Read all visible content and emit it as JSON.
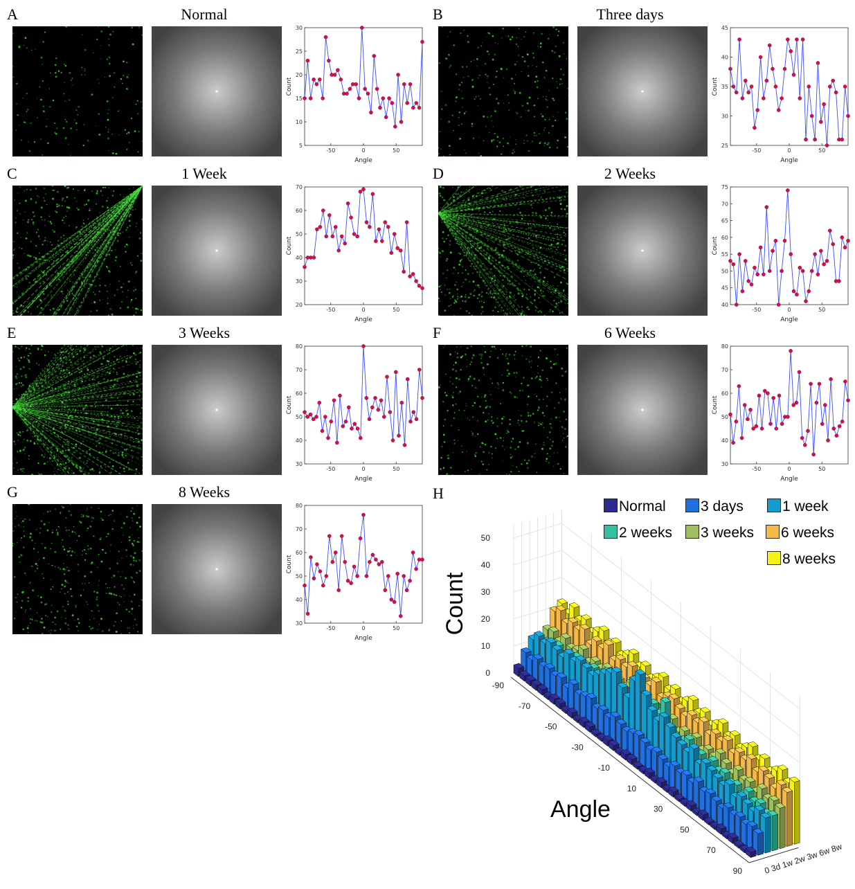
{
  "panels": [
    {
      "letter": "A",
      "title": "Normal",
      "ylim": [
        5,
        30
      ],
      "yticks": [
        5,
        10,
        15,
        20,
        25,
        30
      ],
      "values": [
        15,
        23,
        15,
        19,
        18,
        19,
        15,
        28,
        23,
        20,
        20,
        21,
        19,
        16,
        16,
        17,
        18,
        18,
        15,
        30,
        17,
        16,
        12,
        24,
        17,
        13,
        15,
        11,
        15,
        14,
        9,
        20,
        10,
        18,
        14,
        18,
        13,
        14,
        13,
        27
      ]
    },
    {
      "letter": "B",
      "title": "Three days",
      "ylim": [
        25,
        45
      ],
      "yticks": [
        25,
        30,
        35,
        40,
        45
      ],
      "values": [
        38,
        35,
        34,
        43,
        33,
        36,
        34,
        35,
        28,
        31,
        40,
        33,
        36,
        42,
        38,
        35,
        31,
        33,
        38,
        43,
        41,
        37,
        43,
        33,
        43,
        26,
        35,
        30,
        26,
        39,
        29,
        32,
        25,
        35,
        36,
        34,
        26,
        26,
        35,
        30
      ]
    },
    {
      "letter": "C",
      "title": "1 Week",
      "ylim": [
        20,
        70
      ],
      "yticks": [
        20,
        30,
        40,
        50,
        60,
        70
      ],
      "values": [
        36,
        40,
        40,
        40,
        52,
        53,
        60,
        49,
        58,
        49,
        53,
        43,
        49,
        46,
        63,
        57,
        50,
        49,
        68,
        69,
        55,
        53,
        67,
        47,
        52,
        47,
        55,
        53,
        42,
        50,
        44,
        43,
        34,
        55,
        32,
        33,
        30,
        28,
        27
      ]
    },
    {
      "letter": "D",
      "title": "2 Weeks",
      "ylim": [
        40,
        75
      ],
      "yticks": [
        40,
        45,
        50,
        55,
        60,
        65,
        70,
        75
      ],
      "values": [
        53,
        52,
        40,
        55,
        44,
        53,
        47,
        46,
        51,
        49,
        57,
        49,
        69,
        50,
        56,
        59,
        40,
        50,
        59,
        74,
        55,
        44,
        43,
        51,
        50,
        41,
        44,
        50,
        55,
        49,
        56,
        52,
        53,
        62,
        58,
        47,
        47,
        60,
        57,
        59
      ]
    },
    {
      "letter": "E",
      "title": "3 Weeks",
      "ylim": [
        30,
        80
      ],
      "yticks": [
        30,
        40,
        50,
        60,
        70,
        80
      ],
      "values": [
        52,
        50,
        51,
        49,
        50,
        56,
        44,
        50,
        41,
        48,
        57,
        39,
        59,
        46,
        48,
        54,
        45,
        47,
        45,
        41,
        80,
        58,
        49,
        54,
        58,
        53,
        57,
        50,
        67,
        52,
        40,
        69,
        42,
        56,
        38,
        66,
        48,
        52,
        49,
        70,
        58
      ]
    },
    {
      "letter": "F",
      "title": "6 Weeks",
      "ylim": [
        30,
        80
      ],
      "yticks": [
        30,
        40,
        50,
        60,
        70,
        80
      ],
      "values": [
        51,
        39,
        48,
        63,
        41,
        55,
        49,
        53,
        45,
        46,
        59,
        45,
        61,
        60,
        47,
        58,
        45,
        59,
        47,
        50,
        50,
        78,
        55,
        56,
        69,
        41,
        38,
        44,
        64,
        34,
        56,
        64,
        47,
        55,
        40,
        66,
        45,
        42,
        46,
        48,
        65,
        57
      ]
    },
    {
      "letter": "G",
      "title": "8 Weeks",
      "ylim": [
        30,
        80
      ],
      "yticks": [
        30,
        40,
        50,
        60,
        70,
        80
      ],
      "values": [
        46,
        34,
        58,
        49,
        55,
        52,
        46,
        50,
        67,
        56,
        60,
        44,
        67,
        56,
        48,
        47,
        54,
        50,
        66,
        76,
        50,
        56,
        59,
        57,
        55,
        56,
        44,
        50,
        40,
        39,
        51,
        33,
        50,
        44,
        48,
        60,
        53,
        57,
        57
      ]
    }
  ],
  "axis": {
    "xlabel": "Angle",
    "ylabel": "Count",
    "xticks": [
      -50,
      0,
      50
    ],
    "xrange": [
      -90,
      90
    ]
  },
  "chart_data": {
    "type": "bar",
    "title": "H",
    "xlabel": "Angle",
    "ylabel": "Count",
    "x_ticks": [
      "-90",
      "-70",
      "-50",
      "-30",
      "-10",
      "10",
      "30",
      "50",
      "70",
      "90"
    ],
    "z_ticks": [
      "0",
      "10",
      "20",
      "30",
      "40",
      "50"
    ],
    "depth_ticks": "0 3d 1w 2w 3w 6w 8w",
    "legend": [
      {
        "name": "Normal",
        "color": "#2c2a8f"
      },
      {
        "name": "3 days",
        "color": "#1f6fe0"
      },
      {
        "name": "1 week",
        "color": "#149ccf"
      },
      {
        "name": "2 weeks",
        "color": "#33bfa0"
      },
      {
        "name": "3 weeks",
        "color": "#9fbf5a"
      },
      {
        "name": "6 weeks",
        "color": "#f5b94a"
      },
      {
        "name": "8 weeks",
        "color": "#f7f31a"
      }
    ],
    "series": [
      {
        "name": "Normal",
        "values": [
          3,
          2,
          2,
          2,
          2,
          1,
          2,
          2,
          1,
          2,
          1,
          2,
          2,
          1,
          1,
          2,
          2,
          1,
          2,
          2,
          1,
          1,
          2,
          1,
          2,
          1,
          2,
          1,
          1,
          2,
          1,
          2,
          1,
          1,
          2,
          1,
          2,
          1,
          1,
          2
        ]
      },
      {
        "name": "3 days",
        "values": [
          8,
          7,
          9,
          8,
          9,
          8,
          9,
          7,
          10,
          8,
          9,
          10,
          8,
          9,
          8,
          10,
          9,
          8,
          9,
          10,
          9,
          8,
          9,
          8,
          7,
          9,
          8,
          9,
          8,
          10,
          8,
          9,
          8,
          7,
          9,
          8,
          9,
          8,
          9,
          8
        ]
      },
      {
        "name": "1 week",
        "values": [
          12,
          15,
          14,
          16,
          15,
          14,
          17,
          16,
          18,
          17,
          16,
          18,
          20,
          22,
          24,
          20,
          18,
          26,
          30,
          24,
          20,
          18,
          21,
          19,
          17,
          16,
          15,
          18,
          14,
          16,
          15,
          14,
          13,
          15,
          12,
          14,
          13,
          12,
          14,
          13
        ]
      },
      {
        "name": "2 weeks",
        "values": [
          10,
          12,
          11,
          14,
          12,
          13,
          15,
          14,
          13,
          16,
          15,
          18,
          14,
          16,
          17,
          15,
          13,
          18,
          16,
          20,
          18,
          24,
          16,
          14,
          15,
          17,
          14,
          15,
          13,
          16,
          14,
          15,
          13,
          14,
          12,
          15,
          13,
          14,
          12,
          13
        ]
      },
      {
        "name": "3 weeks",
        "values": [
          14,
          15,
          13,
          16,
          14,
          15,
          17,
          14,
          16,
          15,
          17,
          14,
          16,
          15,
          18,
          16,
          15,
          14,
          17,
          16,
          15,
          17,
          14,
          16,
          15,
          17,
          14,
          16,
          15,
          18,
          16,
          14,
          17,
          15,
          16,
          14,
          17,
          15,
          16,
          15
        ]
      },
      {
        "name": "6 weeks",
        "values": [
          20,
          22,
          19,
          21,
          20,
          22,
          18,
          21,
          20,
          23,
          19,
          21,
          20,
          22,
          19,
          21,
          20,
          23,
          19,
          21,
          22,
          20,
          19,
          21,
          20,
          22,
          19,
          21,
          20,
          22,
          19,
          21,
          20,
          22,
          19,
          21,
          20,
          18,
          21,
          20
        ]
      },
      {
        "name": "8 weeks",
        "values": [
          22,
          20,
          24,
          21,
          23,
          20,
          22,
          24,
          21,
          23,
          20,
          22,
          24,
          21,
          23,
          20,
          22,
          24,
          21,
          23,
          20,
          22,
          24,
          21,
          23,
          20,
          22,
          24,
          21,
          23,
          20,
          22,
          24,
          21,
          23,
          20,
          22,
          24,
          21,
          23
        ]
      }
    ]
  }
}
